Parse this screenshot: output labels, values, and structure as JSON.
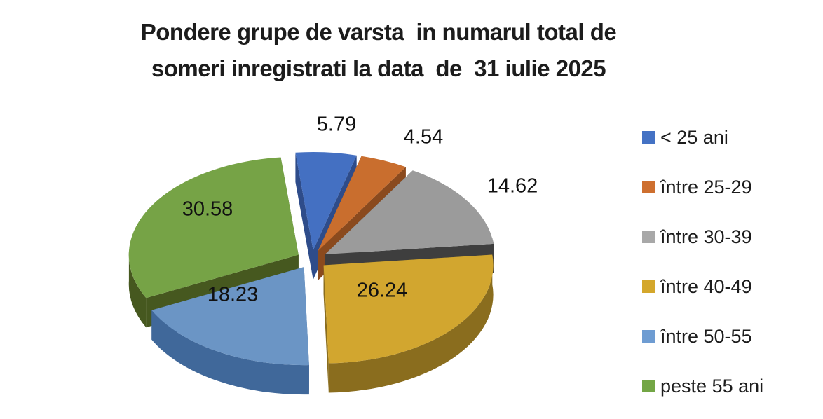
{
  "title": {
    "line1": "Pondere grupe de varsta  in numarul total de",
    "line2": "someri inregistrati la data  de  31 iulie 2025"
  },
  "chart_data": {
    "type": "pie",
    "style": "3d-exploded",
    "unit": "percent",
    "title": "Pondere grupe de varsta in numarul total de someri inregistrati la data de 31 iulie 2025",
    "categories": [
      "< 25 ani",
      "între 25-29",
      "între 30-39",
      "între 40-49",
      "între 50-55",
      "peste 55 ani"
    ],
    "values": [
      5.79,
      4.54,
      14.62,
      26.24,
      18.23,
      30.58
    ],
    "labels": [
      "5.79",
      "4.54",
      "14.62",
      "26.24",
      "18.23",
      "30.58"
    ],
    "colors": [
      "#4470C2",
      "#C96E2E",
      "#9B9B9B",
      "#D2A62F",
      "#6B95C5",
      "#76A346"
    ],
    "side_colors": [
      "#2E4C8A",
      "#8A4A1E",
      "#3E3E3E",
      "#8A6D1E",
      "#40689A",
      "#46581F"
    ],
    "legend_colors": [
      "#4472C4",
      "#CE6F2F",
      "#A8A8A8",
      "#D4A72B",
      "#6E9CD2",
      "#73A645"
    ],
    "start_angle_deg": 0,
    "direction": "clockwise",
    "legend_position": "right",
    "total": 100.0
  }
}
